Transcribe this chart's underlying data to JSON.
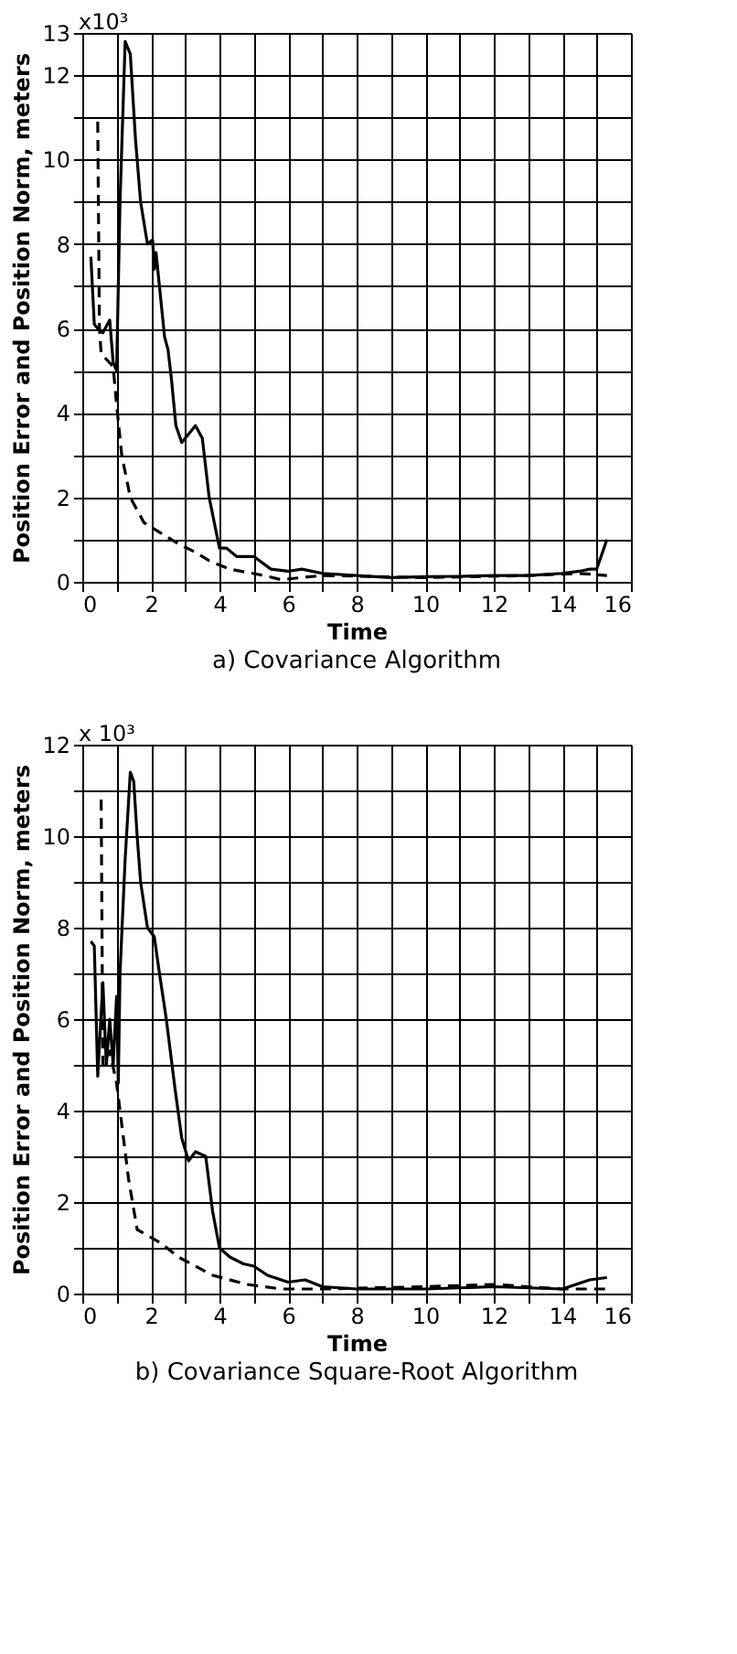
{
  "chart_data": [
    {
      "type": "line",
      "title": "a) Covariance Algorithm",
      "xlabel": "Time",
      "ylabel": "Position Error and Position Norm, meters",
      "grid": true,
      "xlim": [
        0,
        16
      ],
      "xticks": [
        0,
        {
          "value": 1,
          "label": null
        },
        2,
        {
          "value": 3,
          "label": null
        },
        4,
        {
          "value": 5,
          "label": null
        },
        6,
        {
          "value": 7,
          "label": null
        },
        8,
        {
          "value": 9,
          "label": null
        },
        10,
        {
          "value": 11,
          "label": null
        },
        12,
        {
          "value": 13,
          "label": null
        },
        14,
        {
          "value": 15,
          "label": null
        },
        16
      ],
      "ylim": [
        0,
        13
      ],
      "yticks": [
        0,
        {
          "value": 1,
          "label": null
        },
        2,
        {
          "value": 3,
          "label": null
        },
        4,
        {
          "value": 5,
          "label": null
        },
        6,
        {
          "value": 7,
          "label": null
        },
        8,
        {
          "value": 9,
          "label": null
        },
        10,
        {
          "value": 11,
          "label": null
        },
        12,
        13
      ],
      "annotations": [
        "x10³"
      ],
      "series": [
        {
          "color": "#000000",
          "line_style": "solid",
          "x": [
            0.25,
            0.35,
            0.45,
            0.6,
            0.8,
            0.9,
            1.0,
            1.1,
            1.25,
            1.4,
            1.55,
            1.7,
            1.9,
            2.05,
            2.1,
            2.15,
            2.4,
            2.5,
            2.6,
            2.73,
            2.9,
            3.1,
            3.3,
            3.5,
            3.7,
            4.0,
            4.2,
            4.5,
            4.8,
            5.0,
            5.5,
            6.0,
            6.4,
            7.0,
            8.0,
            9.0,
            10.0,
            11.0,
            12.0,
            13.0,
            14.0,
            14.5,
            14.8,
            15.0,
            15.3
          ],
          "values": [
            7.7,
            6.1,
            6.0,
            5.9,
            6.2,
            5.2,
            5.0,
            9.0,
            12.8,
            12.5,
            10.5,
            9.0,
            8.0,
            8.1,
            7.4,
            7.8,
            5.8,
            5.5,
            4.8,
            3.7,
            3.3,
            3.5,
            3.7,
            3.4,
            2.0,
            0.8,
            0.8,
            0.6,
            0.6,
            0.6,
            0.3,
            0.25,
            0.3,
            0.2,
            0.15,
            0.1,
            0.12,
            0.13,
            0.15,
            0.15,
            0.2,
            0.25,
            0.3,
            0.3,
            1.0
          ]
        },
        {
          "color": "#000000",
          "line_style": "dashed",
          "x": [
            0.45,
            0.5,
            0.55,
            0.9,
            1.0,
            1.15,
            1.4,
            1.8,
            2.2,
            2.8,
            3.3,
            3.7,
            4.3,
            5.3,
            5.8,
            7.0,
            10.0,
            13.0,
            14.5,
            15.3
          ],
          "values": [
            10.9,
            6.0,
            5.4,
            5.1,
            4.2,
            3.0,
            2.0,
            1.4,
            1.2,
            0.9,
            0.7,
            0.5,
            0.3,
            0.15,
            0.05,
            0.15,
            0.1,
            0.15,
            0.2,
            0.15
          ]
        }
      ]
    },
    {
      "type": "line",
      "title": "b) Covariance Square-Root Algorithm",
      "xlabel": "Time",
      "ylabel": "Position Error and Position Norm, meters",
      "grid": true,
      "xlim": [
        0,
        16
      ],
      "xticks": [
        0,
        {
          "value": 1,
          "label": null
        },
        2,
        {
          "value": 3,
          "label": null
        },
        4,
        {
          "value": 5,
          "label": null
        },
        6,
        {
          "value": 7,
          "label": null
        },
        8,
        {
          "value": 9,
          "label": null
        },
        10,
        {
          "value": 11,
          "label": null
        },
        12,
        {
          "value": 13,
          "label": null
        },
        14,
        {
          "value": 15,
          "label": null
        },
        16
      ],
      "ylim": [
        0,
        12
      ],
      "yticks": [
        0,
        {
          "value": 1,
          "label": null
        },
        2,
        {
          "value": 3,
          "label": null
        },
        4,
        {
          "value": 5,
          "label": null
        },
        6,
        {
          "value": 7,
          "label": null
        },
        8,
        {
          "value": 9,
          "label": null
        },
        10,
        {
          "value": 11,
          "label": null
        },
        12
      ],
      "annotations": [
        "x 10³"
      ],
      "series": [
        {
          "color": "#000000",
          "line_style": "solid",
          "x": [
            0.25,
            0.35,
            0.45,
            0.6,
            0.7,
            0.8,
            0.9,
            1.0,
            1.05,
            1.1,
            1.25,
            1.4,
            1.5,
            1.6,
            1.7,
            1.9,
            2.1,
            2.25,
            2.45,
            2.7,
            2.9,
            3.1,
            3.3,
            3.6,
            3.8,
            4.0,
            4.3,
            4.7,
            5.0,
            5.4,
            6.0,
            6.5,
            7.0,
            8.0,
            10.0,
            12.0,
            14.0,
            14.8,
            15.3
          ],
          "values": [
            7.7,
            7.6,
            4.75,
            6.8,
            5.0,
            6.0,
            5.0,
            6.5,
            4.6,
            7.0,
            9.5,
            11.4,
            11.2,
            10.0,
            9.0,
            8.0,
            7.8,
            7.0,
            6.0,
            4.5,
            3.4,
            2.9,
            3.1,
            3.0,
            1.8,
            1.0,
            0.8,
            0.65,
            0.6,
            0.4,
            0.25,
            0.3,
            0.15,
            0.1,
            0.1,
            0.15,
            0.1,
            0.3,
            0.35
          ]
        },
        {
          "color": "#000000",
          "line_style": "dashed",
          "x": [
            0.55,
            0.6,
            0.8,
            1.0,
            1.1,
            1.35,
            1.6,
            2.3,
            2.8,
            3.8,
            4.8,
            5.8,
            7.0,
            10.0,
            12.0,
            14.0,
            15.3
          ],
          "values": [
            10.8,
            5.0,
            5.3,
            4.6,
            4.0,
            2.5,
            1.4,
            1.1,
            0.8,
            0.4,
            0.2,
            0.1,
            0.1,
            0.15,
            0.2,
            0.1,
            0.1
          ]
        }
      ]
    }
  ]
}
